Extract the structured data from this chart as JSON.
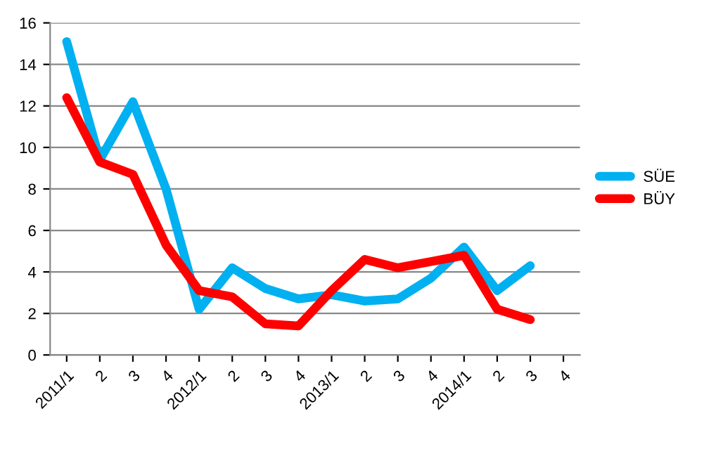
{
  "chart_data": {
    "type": "line",
    "categories": [
      "2011/1",
      "2",
      "3",
      "4",
      "2012/1",
      "2",
      "3",
      "4",
      "2013/1",
      "2",
      "3",
      "4",
      "2014/1",
      "2",
      "3",
      "4"
    ],
    "series": [
      {
        "name": "SÜE",
        "color": "#00b0f0",
        "values": [
          15.1,
          9.4,
          12.2,
          8.0,
          2.2,
          4.2,
          3.2,
          2.7,
          2.9,
          2.6,
          2.7,
          3.7,
          5.2,
          3.1,
          4.3,
          null
        ]
      },
      {
        "name": "BÜY",
        "color": "#ff0000",
        "values": [
          12.4,
          9.3,
          8.7,
          5.3,
          3.1,
          2.8,
          1.5,
          1.4,
          3.1,
          4.6,
          4.2,
          4.5,
          4.8,
          2.2,
          1.7,
          null
        ]
      }
    ],
    "ylim": [
      0,
      16
    ],
    "yticks": [
      0,
      2,
      4,
      6,
      8,
      10,
      12,
      14,
      16
    ],
    "grid": "y",
    "legend": "right",
    "marker": "none",
    "line_style": "solid"
  }
}
